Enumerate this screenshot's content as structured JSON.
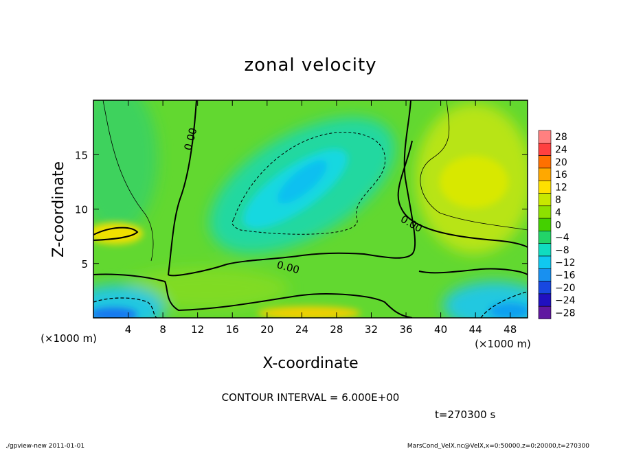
{
  "chart_data": {
    "type": "heatmap",
    "title": "zonal velocity",
    "xlabel": "X-coordinate",
    "ylabel": "Z-coordinate",
    "x_unit": "(×1000 m)",
    "y_unit": "(×1000 m)",
    "x_range": [
      0,
      50
    ],
    "y_range": [
      0,
      20
    ],
    "x_ticks": [
      4,
      8,
      12,
      16,
      20,
      24,
      28,
      32,
      36,
      40,
      44,
      48
    ],
    "y_ticks": [
      5,
      10,
      15
    ],
    "colorbar_levels": [
      28,
      24,
      20,
      16,
      12,
      8,
      4,
      0,
      -4,
      -8,
      -12,
      -16,
      -20,
      -24,
      -28
    ],
    "colorbar_labels": [
      "28",
      "24",
      "20",
      "16",
      "12",
      "8",
      "4",
      "0",
      "−4",
      "−8",
      "−12",
      "−16",
      "−20",
      "−24",
      "−28"
    ],
    "colorbar_colors": [
      "#ff8080",
      "#ff4040",
      "#ff7000",
      "#ffa800",
      "#ffe000",
      "#c8e800",
      "#8ee000",
      "#44d000",
      "#22d468",
      "#10dcc0",
      "#10c8f0",
      "#1890f0",
      "#1848e0",
      "#2010c0",
      "#6018a0"
    ],
    "contour_interval_text": "CONTOUR INTERVAL = 6.000E+00",
    "zero_contour_label": "0.00",
    "features": [
      {
        "kind": "min",
        "x": 24,
        "z": 12.5,
        "value": -9
      },
      {
        "kind": "max",
        "x": 44,
        "z": 12.5,
        "value": 10
      },
      {
        "kind": "max",
        "x": 3,
        "z": 7.5,
        "value": 11
      },
      {
        "kind": "max",
        "x": 24,
        "z": 0.5,
        "value": 12
      },
      {
        "kind": "min",
        "x": 2,
        "z": 0.5,
        "value": -14
      },
      {
        "kind": "min",
        "x": 47,
        "z": 1.0,
        "value": -12
      }
    ]
  },
  "time_label": "t=270300 s",
  "footer_left": "./gpview-new  2011-01-01",
  "footer_right": "MarsCond_VelX.nc@VelX,x=0:50000,z=0:20000,t=270300"
}
